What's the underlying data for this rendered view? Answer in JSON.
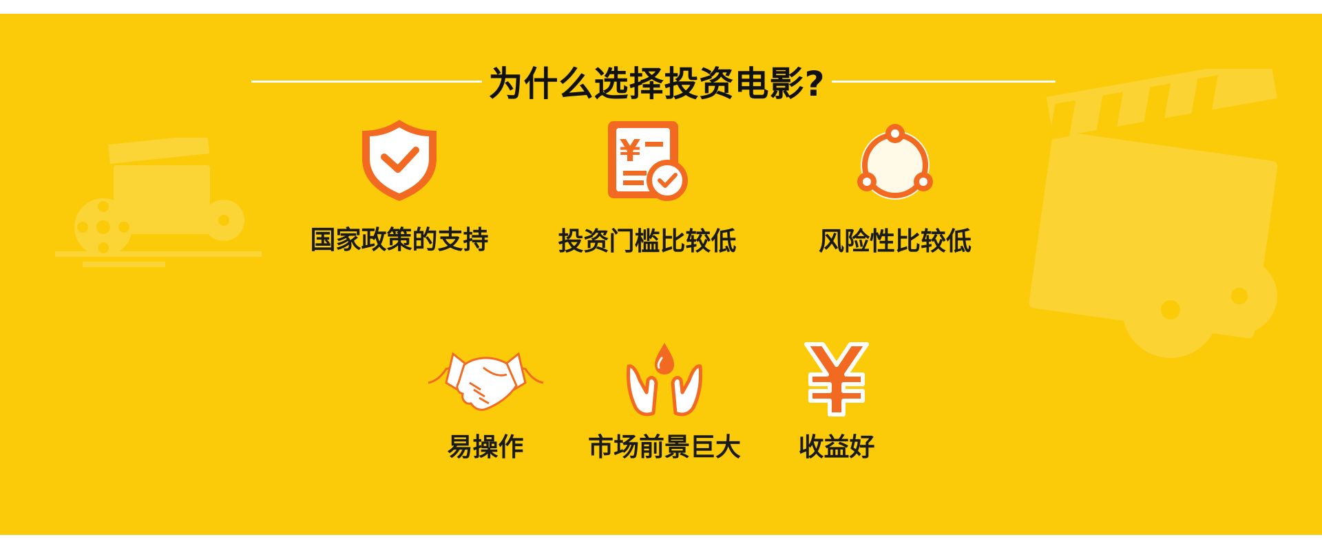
{
  "section": {
    "title": "为什么选择投资电影?",
    "background_color": "#fbcb0a",
    "accent_color": "#f26a21"
  },
  "features": [
    {
      "label": "国家政策的支持",
      "icon": "shield-check-icon"
    },
    {
      "label": "投资门槛比较低",
      "icon": "yuan-document-icon"
    },
    {
      "label": "风险性比较低",
      "icon": "connected-circle-icon"
    },
    {
      "label": "易操作",
      "icon": "handshake-icon"
    },
    {
      "label": "市场前景巨大",
      "icon": "hands-drop-icon"
    },
    {
      "label": "收益好",
      "icon": "yuan-symbol-icon"
    }
  ]
}
